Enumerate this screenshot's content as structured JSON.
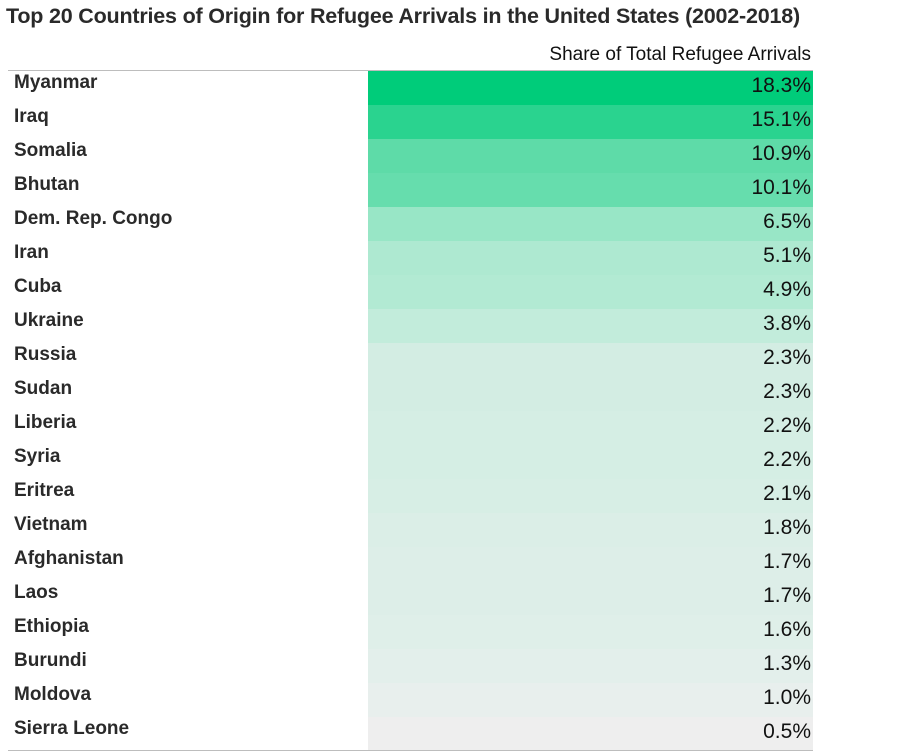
{
  "chart_data": {
    "type": "table",
    "title": "Top 20 Countries of Origin for Refugee Arrivals in the United States (2002-2018)",
    "column_header": "Share of Total Refugee Arrivals",
    "rows": [
      {
        "country": "Myanmar",
        "label": "18.3%",
        "value": 18.3,
        "color": "#00cc7a"
      },
      {
        "country": "Iraq",
        "label": "15.1%",
        "value": 15.1,
        "color": "#2ad38f"
      },
      {
        "country": "Somalia",
        "label": "10.9%",
        "value": 10.9,
        "color": "#5edba8"
      },
      {
        "country": "Bhutan",
        "label": "10.1%",
        "value": 10.1,
        "color": "#66ddad"
      },
      {
        "country": "Dem. Rep. Congo",
        "label": "6.5%",
        "value": 6.5,
        "color": "#98e6c6"
      },
      {
        "country": "Iran",
        "label": "5.1%",
        "value": 5.1,
        "color": "#aee9d1"
      },
      {
        "country": "Cuba",
        "label": "4.9%",
        "value": 4.9,
        "color": "#b2ead3"
      },
      {
        "country": "Ukraine",
        "label": "3.8%",
        "value": 3.8,
        "color": "#c2ecdb"
      },
      {
        "country": "Russia",
        "label": "2.3%",
        "value": 2.3,
        "color": "#d3ede3"
      },
      {
        "country": "Sudan",
        "label": "2.3%",
        "value": 2.3,
        "color": "#d3ede3"
      },
      {
        "country": "Liberia",
        "label": "2.2%",
        "value": 2.2,
        "color": "#d5eee4"
      },
      {
        "country": "Syria",
        "label": "2.2%",
        "value": 2.2,
        "color": "#d5eee4"
      },
      {
        "country": "Eritrea",
        "label": "2.1%",
        "value": 2.1,
        "color": "#d7eee5"
      },
      {
        "country": "Vietnam",
        "label": "1.8%",
        "value": 1.8,
        "color": "#dbeee7"
      },
      {
        "country": "Afghanistan",
        "label": "1.7%",
        "value": 1.7,
        "color": "#ddeee8"
      },
      {
        "country": "Laos",
        "label": "1.7%",
        "value": 1.7,
        "color": "#ddeee8"
      },
      {
        "country": "Ethiopia",
        "label": "1.6%",
        "value": 1.6,
        "color": "#dfefe9"
      },
      {
        "country": "Burundi",
        "label": "1.3%",
        "value": 1.3,
        "color": "#e3efeb"
      },
      {
        "country": "Moldova",
        "label": "1.0%",
        "value": 1.0,
        "color": "#e8efed"
      },
      {
        "country": "Sierra Leone",
        "label": "0.5%",
        "value": 0.5,
        "color": "#eeeeee"
      }
    ]
  }
}
